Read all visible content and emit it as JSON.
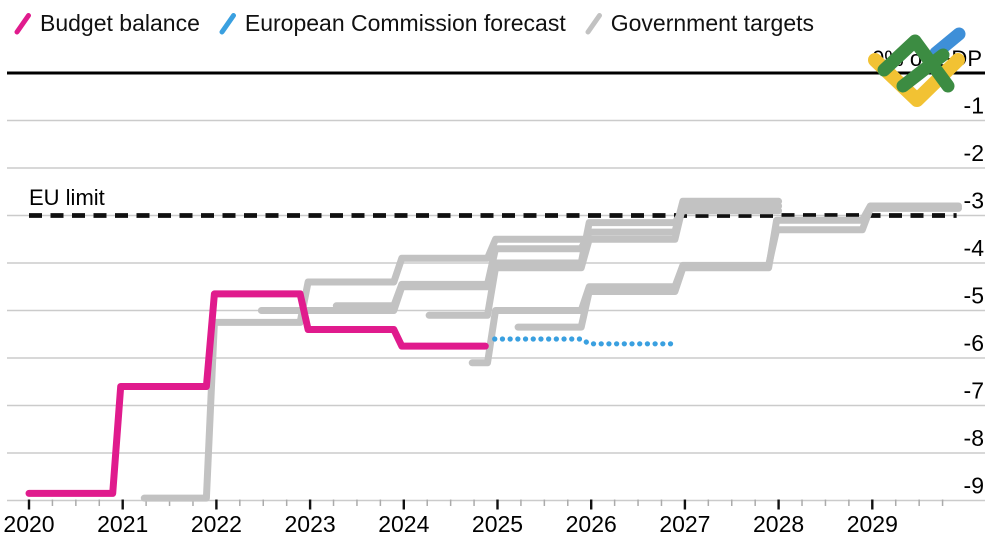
{
  "legend": {
    "items": [
      {
        "label": "Budget balance",
        "color": "#E01B8D"
      },
      {
        "label": "European Commission forecast",
        "color": "#3AA0E0"
      },
      {
        "label": "Government targets",
        "color": "#C2C2C2"
      }
    ]
  },
  "annotations": {
    "eu_limit_label": "EU limit",
    "y_axis_title": "0% of GDP"
  },
  "logo": {
    "name": "litefinance-logo",
    "colors": {
      "green": "#3C8C42",
      "yellow": "#F2C233",
      "blue": "#3E8FD8"
    }
  },
  "chart_data": {
    "type": "line",
    "step": true,
    "title": "",
    "xlabel": "",
    "ylabel": "0% of GDP",
    "xlim": [
      2020,
      2030.2
    ],
    "ylim": [
      -9.6,
      0
    ],
    "grid": true,
    "legend_position": "top",
    "x_ticks": [
      2020,
      2021,
      2022,
      2023,
      2024,
      2025,
      2026,
      2027,
      2028,
      2029
    ],
    "y_ticks": [
      0,
      -1,
      -2,
      -3,
      -4,
      -5,
      -6,
      -7,
      -8,
      -9
    ],
    "eu_limit": {
      "value": -3,
      "x_start": 2020,
      "x_end": 2029.9
    },
    "series": [
      {
        "name": "Budget balance",
        "color": "#E01B8D",
        "width": 7,
        "dash": "solid",
        "steps": [
          [
            2020,
            2021,
            -8.85
          ],
          [
            2021,
            2022,
            -6.6
          ],
          [
            2022,
            2023,
            -4.65
          ],
          [
            2023,
            2024,
            -5.4
          ],
          [
            2024,
            2024.87,
            -5.75
          ]
        ]
      },
      {
        "name": "European Commission forecast",
        "color": "#3AA0E0",
        "width": 5.2,
        "dash": "dot",
        "steps": [
          [
            2024.97,
            2026,
            -5.6
          ],
          [
            2026,
            2026.87,
            -5.7
          ]
        ]
      },
      {
        "name": "Government target 1",
        "color": "#C2C2C2",
        "width": 7,
        "dash": "solid",
        "steps": [
          [
            2021.23,
            2022,
            -8.95
          ],
          [
            2022,
            2023,
            -5.25
          ],
          [
            2023,
            2024,
            -4.4
          ],
          [
            2024,
            2025,
            -3.9
          ],
          [
            2025,
            2026,
            -3.5
          ]
        ]
      },
      {
        "name": "Government target 2",
        "color": "#C2C2C2",
        "width": 7,
        "dash": "solid",
        "steps": [
          [
            2022.48,
            2023,
            -5.0
          ],
          [
            2023,
            2024,
            -5.0
          ],
          [
            2024,
            2025,
            -4.5
          ],
          [
            2025,
            2026,
            -4.0
          ],
          [
            2026,
            2027,
            -3.15
          ],
          [
            2027,
            2028,
            -2.9
          ]
        ]
      },
      {
        "name": "Government target 3",
        "color": "#C2C2C2",
        "width": 7,
        "dash": "solid",
        "steps": [
          [
            2023.28,
            2024,
            -4.9
          ],
          [
            2024,
            2025,
            -4.45
          ],
          [
            2025,
            2026,
            -3.7
          ],
          [
            2026,
            2027,
            -3.35
          ],
          [
            2027,
            2028,
            -2.7
          ]
        ]
      },
      {
        "name": "Government target 4",
        "color": "#C2C2C2",
        "width": 7,
        "dash": "solid",
        "steps": [
          [
            2024.27,
            2025,
            -5.1
          ],
          [
            2025,
            2026,
            -4.1
          ],
          [
            2026,
            2027,
            -3.5
          ],
          [
            2027,
            2028,
            -2.8
          ]
        ]
      },
      {
        "name": "Government target 5",
        "color": "#C2C2C2",
        "width": 7,
        "dash": "solid",
        "steps": [
          [
            2024.73,
            2025,
            -6.1
          ],
          [
            2025,
            2026,
            -5.0
          ],
          [
            2026,
            2027,
            -4.5
          ],
          [
            2027,
            2028,
            -4.05
          ],
          [
            2028,
            2029,
            -3.3
          ],
          [
            2029,
            2029.92,
            -2.85
          ]
        ]
      },
      {
        "name": "Government target 6",
        "color": "#C2C2C2",
        "width": 7,
        "dash": "solid",
        "steps": [
          [
            2025.22,
            2026,
            -5.35
          ],
          [
            2026,
            2027,
            -4.6
          ],
          [
            2027,
            2028,
            -4.1
          ],
          [
            2028,
            2029,
            -3.1
          ],
          [
            2029,
            2029.92,
            -2.8
          ]
        ]
      }
    ],
    "draw_order": [
      2,
      3,
      4,
      5,
      6,
      7,
      1,
      0
    ]
  }
}
